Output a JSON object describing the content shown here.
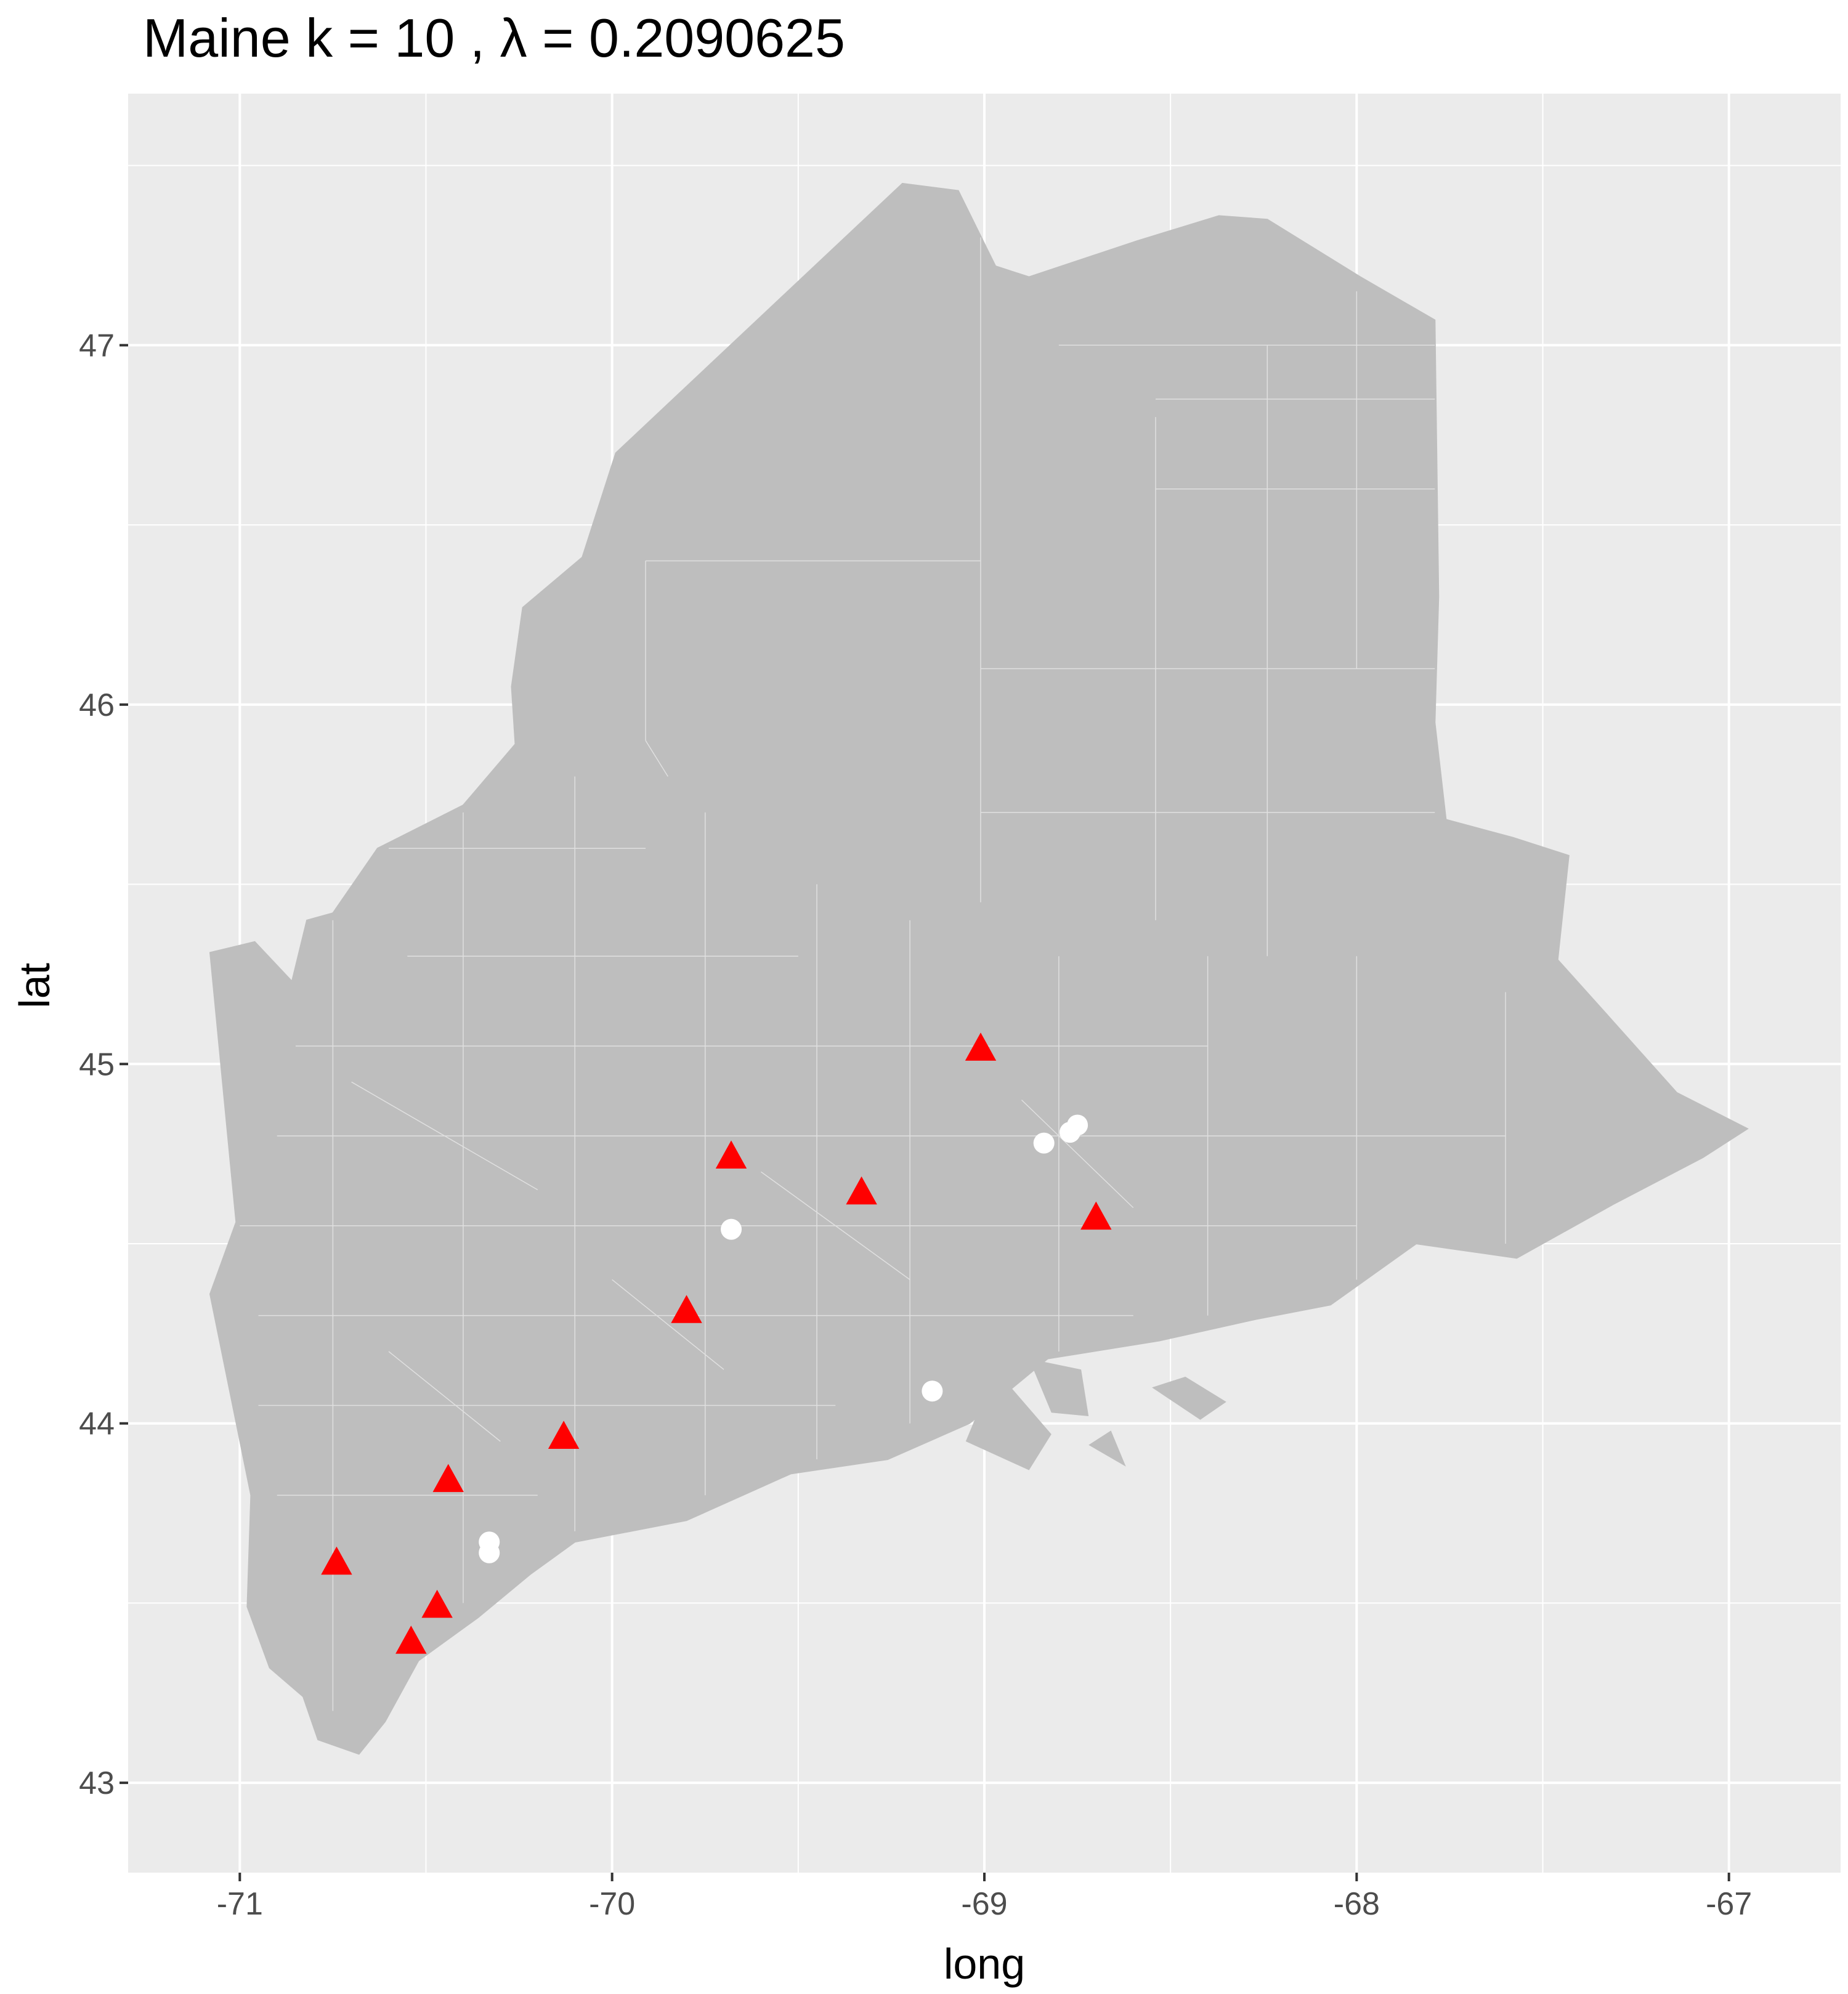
{
  "chart_data": {
    "type": "map",
    "title": "Maine  k =  10 ,  λ  =  0.2090625",
    "xlabel": "long",
    "ylabel": "lat",
    "xlim": [
      -71.3,
      -66.7
    ],
    "ylim": [
      42.75,
      47.7
    ],
    "x_ticks": [
      -71,
      -70,
      -69,
      -68,
      -67
    ],
    "x_tick_labels": [
      "-71",
      "-70",
      "-69",
      "-68",
      "-67"
    ],
    "y_ticks": [
      43,
      44,
      45,
      46,
      47
    ],
    "y_tick_labels": [
      "43",
      "44",
      "45",
      "46",
      "47"
    ],
    "grid": true,
    "colors": {
      "panel": "#ebebeb",
      "grid": "#ffffff",
      "land": "#bebebe",
      "boundary": "#e0e0e0",
      "triangle": "#ff0000",
      "circle": "#ffffff"
    },
    "outline": [
      [
        -71.08,
        45.31
      ],
      [
        -70.96,
        45.34
      ],
      [
        -70.86,
        45.23
      ],
      [
        -70.82,
        45.4
      ],
      [
        -70.75,
        45.42
      ],
      [
        -70.63,
        45.6
      ],
      [
        -70.4,
        45.72
      ],
      [
        -70.26,
        45.89
      ],
      [
        -70.27,
        46.05
      ],
      [
        -70.24,
        46.27
      ],
      [
        -70.08,
        46.41
      ],
      [
        -69.99,
        46.7
      ],
      [
        -69.22,
        47.45
      ],
      [
        -69.07,
        47.43
      ],
      [
        -68.97,
        47.22
      ],
      [
        -68.88,
        47.19
      ],
      [
        -68.59,
        47.29
      ],
      [
        -68.37,
        47.36
      ],
      [
        -68.24,
        47.35
      ],
      [
        -67.99,
        47.19
      ],
      [
        -67.79,
        47.07
      ],
      [
        -67.78,
        46.3
      ],
      [
        -67.79,
        45.95
      ],
      [
        -67.76,
        45.68
      ],
      [
        -67.58,
        45.63
      ],
      [
        -67.43,
        45.58
      ],
      [
        -67.46,
        45.29
      ],
      [
        -67.33,
        45.14
      ],
      [
        -67.14,
        44.92
      ],
      [
        -66.95,
        44.82
      ],
      [
        -67.07,
        44.74
      ],
      [
        -67.31,
        44.61
      ],
      [
        -67.57,
        44.46
      ],
      [
        -67.84,
        44.5
      ],
      [
        -68.07,
        44.33
      ],
      [
        -68.27,
        44.29
      ],
      [
        -68.53,
        44.23
      ],
      [
        -68.83,
        44.18
      ],
      [
        -69.04,
        44.0
      ],
      [
        -69.26,
        43.9
      ],
      [
        -69.52,
        43.86
      ],
      [
        -69.8,
        43.73
      ],
      [
        -70.1,
        43.67
      ],
      [
        -70.22,
        43.58
      ],
      [
        -70.36,
        43.46
      ],
      [
        -70.52,
        43.34
      ],
      [
        -70.61,
        43.17
      ],
      [
        -70.68,
        43.08
      ],
      [
        -70.79,
        43.12
      ],
      [
        -70.83,
        43.24
      ],
      [
        -70.92,
        43.32
      ],
      [
        -70.98,
        43.49
      ],
      [
        -70.97,
        43.8
      ],
      [
        -71.08,
        44.36
      ],
      [
        -71.01,
        44.56
      ],
      [
        -71.08,
        45.31
      ]
    ],
    "islands": [
      [
        [
          -68.88,
          44.18
        ],
        [
          -68.82,
          44.03
        ],
        [
          -68.72,
          44.02
        ],
        [
          -68.74,
          44.15
        ]
      ],
      [
        [
          -68.97,
          44.15
        ],
        [
          -69.05,
          43.95
        ],
        [
          -68.88,
          43.87
        ],
        [
          -68.82,
          43.97
        ]
      ],
      [
        [
          -68.72,
          43.94
        ],
        [
          -68.62,
          43.88
        ],
        [
          -68.66,
          43.98
        ]
      ],
      [
        [
          -68.55,
          44.1
        ],
        [
          -68.42,
          44.01
        ],
        [
          -68.35,
          44.06
        ],
        [
          -68.46,
          44.13
        ]
      ]
    ],
    "series": [
      {
        "marker": "triangle",
        "color": "#ff0000",
        "points": [
          {
            "x": -69.01,
            "y": 45.04
          },
          {
            "x": -69.68,
            "y": 44.74
          },
          {
            "x": -69.33,
            "y": 44.64
          },
          {
            "x": -68.7,
            "y": 44.57
          },
          {
            "x": -69.8,
            "y": 44.31
          },
          {
            "x": -70.13,
            "y": 43.96
          },
          {
            "x": -70.44,
            "y": 43.84
          },
          {
            "x": -70.74,
            "y": 43.61
          },
          {
            "x": -70.47,
            "y": 43.49
          },
          {
            "x": -70.54,
            "y": 43.39
          }
        ]
      },
      {
        "marker": "circle",
        "color": "#ffffff",
        "points": [
          {
            "x": -68.75,
            "y": 44.83
          },
          {
            "x": -68.77,
            "y": 44.81
          },
          {
            "x": -68.84,
            "y": 44.78
          },
          {
            "x": -69.68,
            "y": 44.54
          },
          {
            "x": -69.14,
            "y": 44.09
          },
          {
            "x": -70.33,
            "y": 43.67
          },
          {
            "x": -70.33,
            "y": 43.64
          }
        ]
      }
    ]
  }
}
